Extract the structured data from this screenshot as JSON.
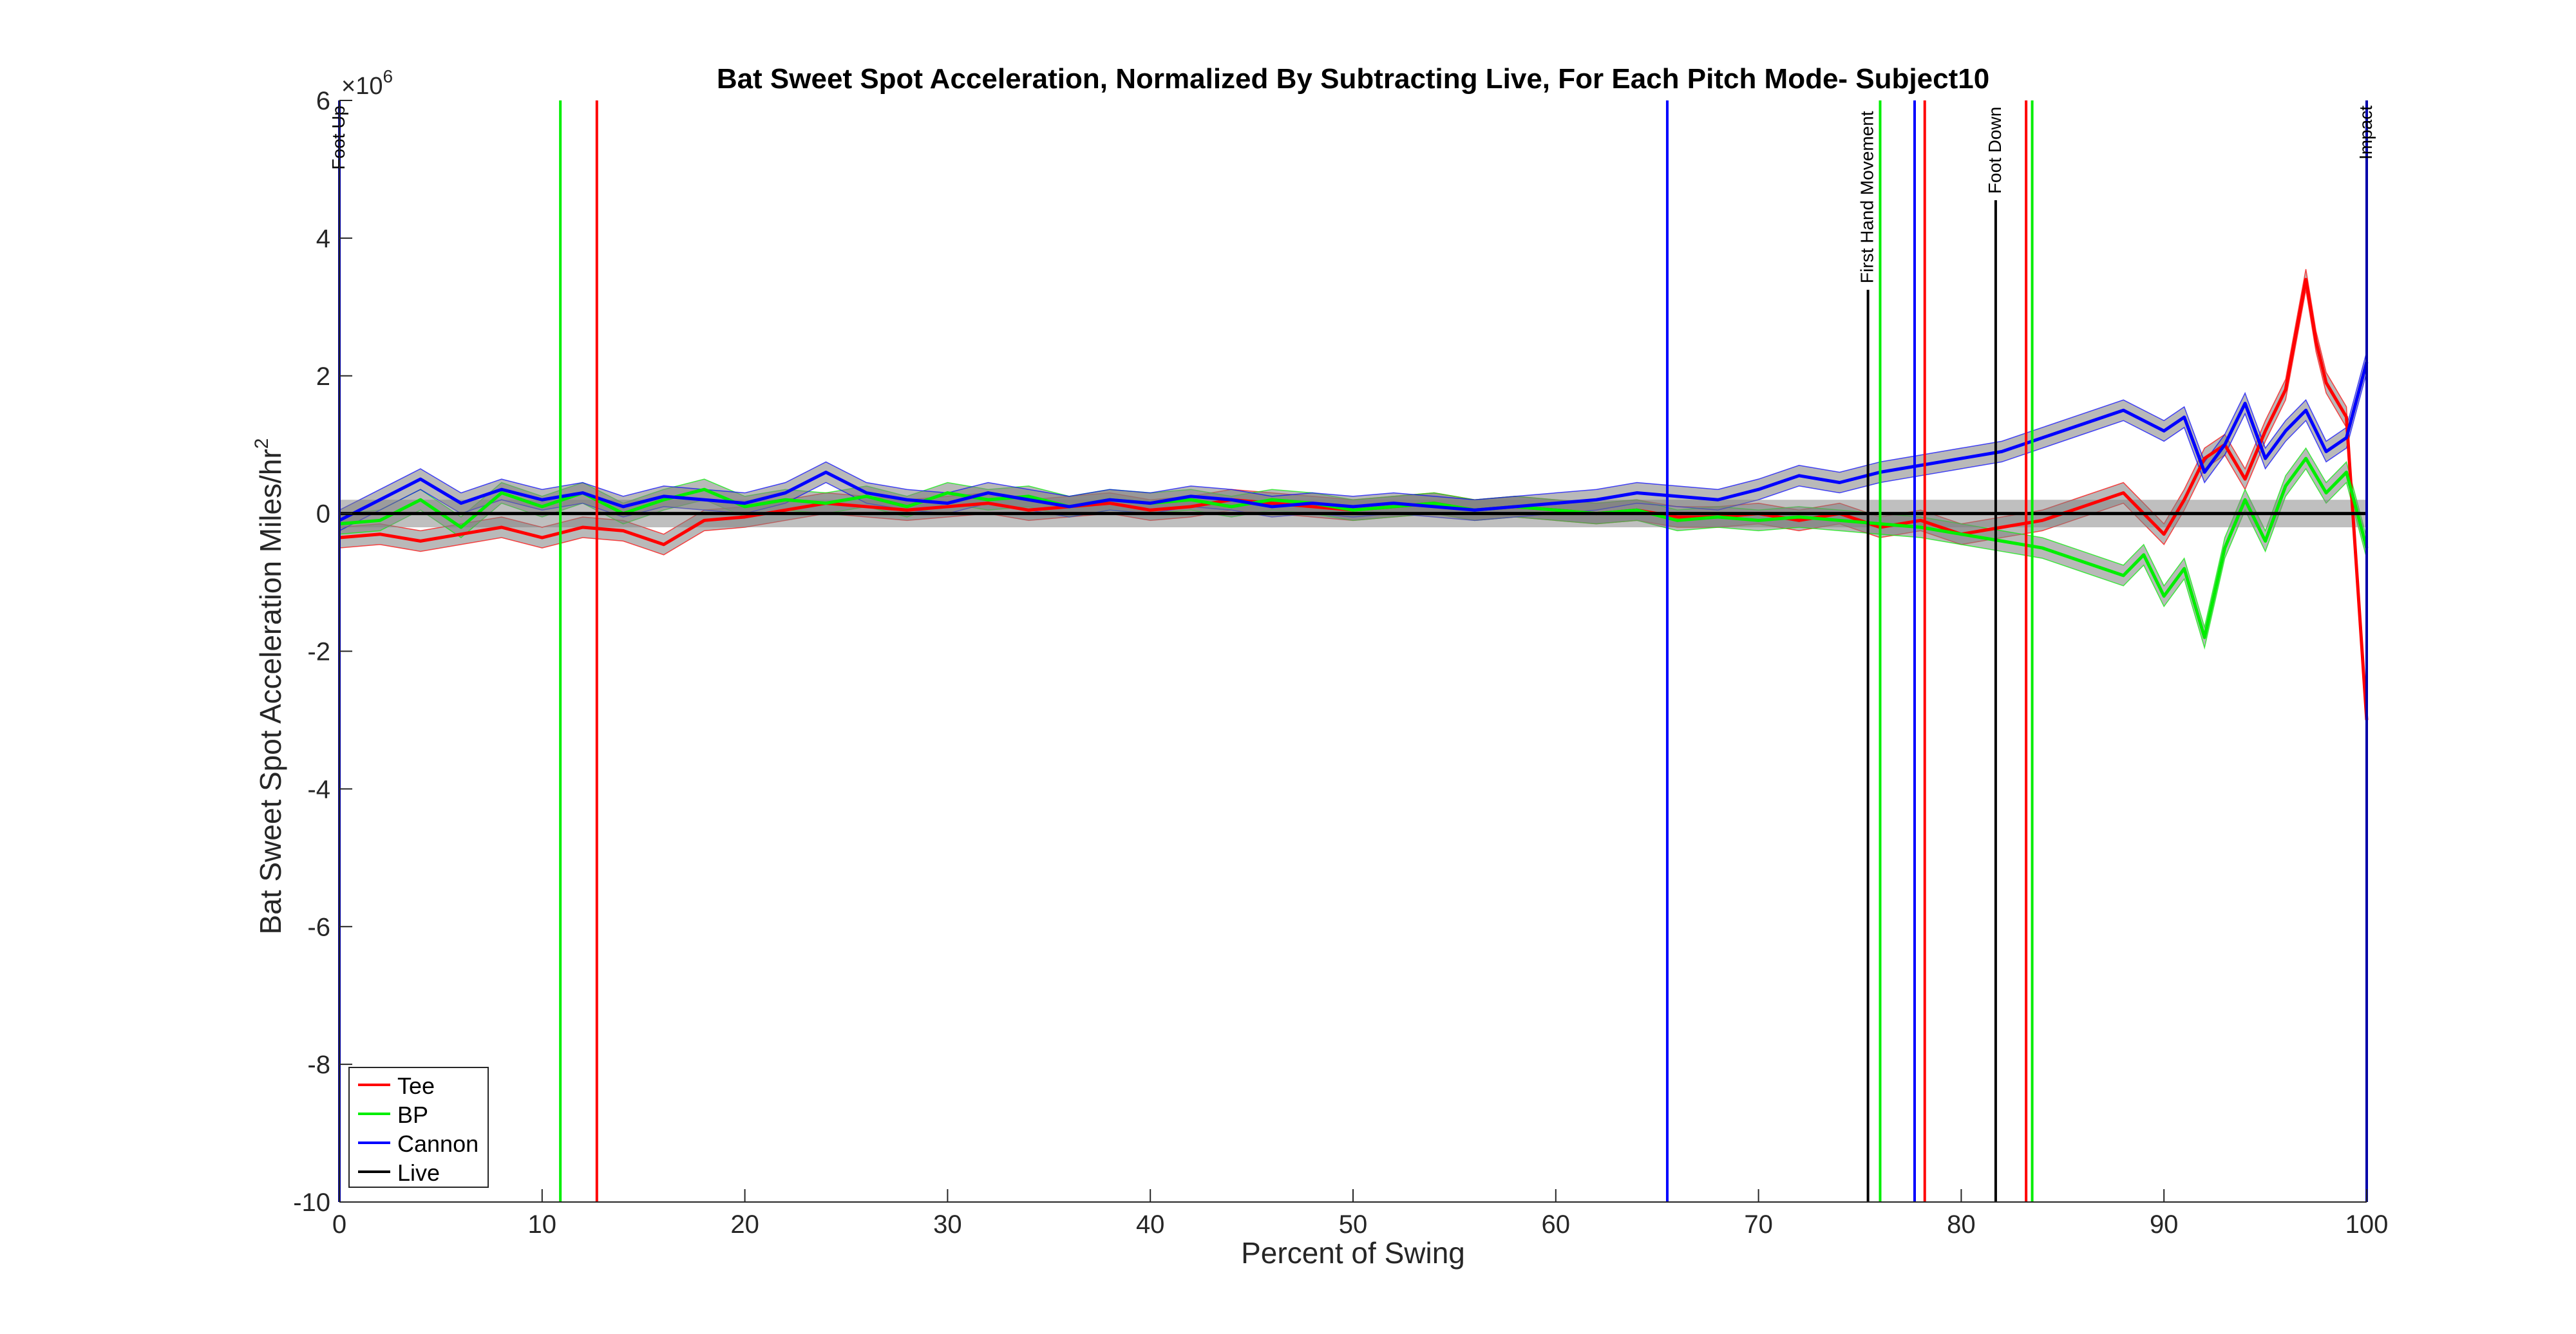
{
  "chart_data": {
    "type": "line",
    "title": "Bat Sweet Spot Acceleration, Normalized By Subtracting Live, For Each Pitch Mode- Subject10",
    "xlabel": "Percent of Swing",
    "ylabel": "Bat Sweet Spot Acceleration Miles/hr",
    "ylabel_sup": "2",
    "y_exponent_base": "×10",
    "y_exponent_power": "6",
    "xlim": [
      0,
      100
    ],
    "ylim": [
      -10,
      6
    ],
    "xticks": [
      0,
      10,
      20,
      30,
      40,
      50,
      60,
      70,
      80,
      90,
      100
    ],
    "yticks": [
      -10,
      -8,
      -6,
      -4,
      -2,
      0,
      2,
      4,
      6
    ],
    "grid": false,
    "legend_position": "bottom-left",
    "legend": [
      "Tee",
      "BP",
      "Cannon",
      "Live"
    ],
    "colors": {
      "Tee": "#ff0000",
      "BP": "#00ee00",
      "Cannon": "#0000ff",
      "Live": "#000000",
      "band": "#7f7f7f"
    },
    "series": [
      {
        "name": "Tee",
        "color": "#ff0000",
        "x": [
          0,
          2,
          4,
          6,
          8,
          10,
          12,
          14,
          16,
          18,
          20,
          22,
          24,
          26,
          28,
          30,
          32,
          34,
          36,
          38,
          40,
          42,
          44,
          46,
          48,
          50,
          52,
          54,
          56,
          58,
          60,
          62,
          64,
          66,
          68,
          70,
          72,
          74,
          76,
          78,
          80,
          82,
          84,
          86,
          88,
          90,
          91,
          92,
          93,
          94,
          95,
          96,
          97,
          97.5,
          98,
          99,
          100
        ],
        "y": [
          -0.35,
          -0.3,
          -0.4,
          -0.3,
          -0.2,
          -0.35,
          -0.2,
          -0.25,
          -0.45,
          -0.1,
          -0.05,
          0.05,
          0.15,
          0.1,
          0.05,
          0.1,
          0.15,
          0.05,
          0.1,
          0.15,
          0.05,
          0.1,
          0.2,
          0.15,
          0.1,
          0.05,
          0.1,
          0.15,
          0.05,
          0.1,
          0.05,
          0.0,
          0.05,
          -0.05,
          -0.05,
          0.0,
          -0.1,
          0.0,
          -0.2,
          -0.1,
          -0.3,
          -0.2,
          -0.1,
          0.1,
          0.3,
          -0.3,
          0.2,
          0.8,
          1.0,
          0.5,
          1.2,
          1.8,
          3.4,
          2.5,
          1.9,
          1.4,
          -3.0
        ]
      },
      {
        "name": "BP",
        "color": "#00ee00",
        "x": [
          0,
          2,
          4,
          6,
          8,
          10,
          12,
          14,
          16,
          18,
          20,
          22,
          24,
          26,
          28,
          30,
          32,
          34,
          36,
          38,
          40,
          42,
          44,
          46,
          48,
          50,
          52,
          54,
          56,
          58,
          60,
          62,
          64,
          66,
          68,
          70,
          72,
          74,
          76,
          78,
          80,
          82,
          84,
          86,
          88,
          89,
          90,
          91,
          92,
          93,
          94,
          95,
          96,
          97,
          98,
          99,
          100
        ],
        "y": [
          -0.15,
          -0.1,
          0.2,
          -0.2,
          0.3,
          0.1,
          0.3,
          0.0,
          0.2,
          0.35,
          0.1,
          0.2,
          0.15,
          0.25,
          0.1,
          0.3,
          0.2,
          0.25,
          0.1,
          0.2,
          0.15,
          0.2,
          0.1,
          0.2,
          0.15,
          0.05,
          0.1,
          0.15,
          0.05,
          0.1,
          0.05,
          0.0,
          0.05,
          -0.1,
          -0.05,
          -0.1,
          -0.05,
          -0.1,
          -0.15,
          -0.2,
          -0.3,
          -0.4,
          -0.5,
          -0.7,
          -0.9,
          -0.6,
          -1.2,
          -0.8,
          -1.8,
          -0.5,
          0.2,
          -0.4,
          0.4,
          0.8,
          0.3,
          0.6,
          -0.5
        ]
      },
      {
        "name": "Cannon",
        "color": "#0000ff",
        "x": [
          0,
          2,
          4,
          6,
          8,
          10,
          12,
          14,
          16,
          18,
          20,
          22,
          24,
          26,
          28,
          30,
          32,
          34,
          36,
          38,
          40,
          42,
          44,
          46,
          48,
          50,
          52,
          54,
          56,
          58,
          60,
          62,
          64,
          66,
          68,
          70,
          72,
          74,
          76,
          78,
          80,
          82,
          84,
          86,
          88,
          90,
          91,
          92,
          93,
          94,
          95,
          96,
          97,
          98,
          99,
          100
        ],
        "y": [
          -0.1,
          0.2,
          0.5,
          0.15,
          0.35,
          0.2,
          0.3,
          0.1,
          0.25,
          0.2,
          0.15,
          0.3,
          0.6,
          0.3,
          0.2,
          0.15,
          0.3,
          0.2,
          0.1,
          0.2,
          0.15,
          0.25,
          0.2,
          0.1,
          0.15,
          0.1,
          0.15,
          0.1,
          0.05,
          0.1,
          0.15,
          0.2,
          0.3,
          0.25,
          0.2,
          0.35,
          0.55,
          0.45,
          0.6,
          0.7,
          0.8,
          0.9,
          1.1,
          1.3,
          1.5,
          1.2,
          1.4,
          0.6,
          1.0,
          1.6,
          0.8,
          1.2,
          1.5,
          0.9,
          1.1,
          2.2
        ]
      },
      {
        "name": "Live",
        "color": "#000000",
        "x": [
          0,
          100
        ],
        "y": [
          0,
          0
        ]
      }
    ],
    "event_markers": [
      {
        "series": "BP",
        "x": 10.9,
        "label": ""
      },
      {
        "series": "Tee",
        "x": 12.7,
        "label": ""
      },
      {
        "series": "Cannon",
        "x": 65.5,
        "label": ""
      },
      {
        "series": "Live",
        "x": 75.4,
        "label": "First Hand Movement"
      },
      {
        "series": "BP",
        "x": 76.0,
        "label": ""
      },
      {
        "series": "Cannon",
        "x": 77.7,
        "label": ""
      },
      {
        "series": "Tee",
        "x": 78.2,
        "label": ""
      },
      {
        "series": "Live",
        "x": 81.7,
        "label": "Foot Down"
      },
      {
        "series": "Tee",
        "x": 83.2,
        "label": ""
      },
      {
        "series": "BP",
        "x": 83.5,
        "label": ""
      }
    ],
    "edge_labels": {
      "left": "Foot Up",
      "right": "Impact"
    }
  }
}
